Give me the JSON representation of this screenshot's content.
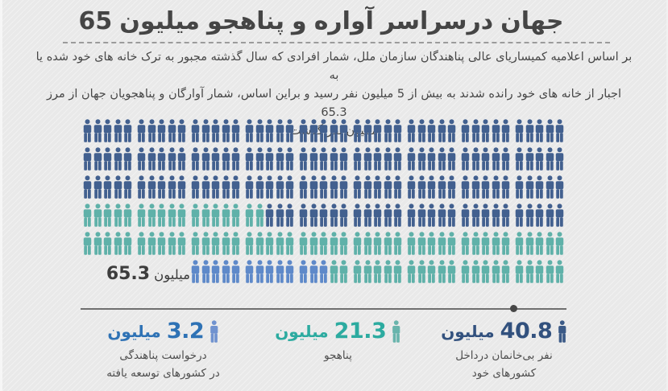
{
  "title": "65 میلیون پناهجو و آواره درسراسر جهان",
  "intro_lines": [
    "بر اساس اعلامیه کمیساریای عالی پناهندگان سازمان ملل، شمار افرادی که سال گذشته مجبور به ترک خانه های خود شده یا به",
    "اجبار از خانه های خود رانده شدند به بیش از 5 میلیون  نفر رسید و براین اساس، شمار آوارگان و پناهجویان جهان از مرز 65.3",
    "میلیون نفر گذشت"
  ],
  "pictogram_label": {
    "value": "65.3",
    "unit": "میلیون"
  },
  "chart_data": {
    "type": "pictogram",
    "title": "65 میلیون پناهجو و آواره درسراسر جهان",
    "person_unit_million": 0.25,
    "icons_per_group": 5,
    "groups_per_row": 9,
    "total": {
      "value_million": 65.3,
      "label": "65.3 میلیون"
    },
    "colors": {
      "navy": "#42608f",
      "teal": "#5fb1a9",
      "blue": "#5e89c9"
    },
    "rows": [
      {
        "indent_groups": 0,
        "segments": [
          {
            "color": "navy",
            "count": 45
          }
        ]
      },
      {
        "indent_groups": 0,
        "segments": [
          {
            "color": "navy",
            "count": 45
          }
        ]
      },
      {
        "indent_groups": 0,
        "segments": [
          {
            "color": "navy",
            "count": 45
          }
        ]
      },
      {
        "indent_groups": 0,
        "segments": [
          {
            "color": "teal",
            "count": 17
          },
          {
            "color": "navy",
            "count": 28
          }
        ]
      },
      {
        "indent_groups": 0,
        "segments": [
          {
            "color": "teal",
            "count": 45
          }
        ]
      },
      {
        "indent_groups": 2,
        "segments": [
          {
            "color": "blue",
            "count": 13
          },
          {
            "color": "teal",
            "count": 22
          }
        ]
      }
    ],
    "series": [
      {
        "name": "نفر بی‌خانمان درداخل کشورهای خود",
        "value_million": 40.8,
        "color_key": "navy"
      },
      {
        "name": "پناهجو",
        "value_million": 21.3,
        "color_key": "teal"
      },
      {
        "name": "درخواست پناهندگی در کشورهای توسعه یافته",
        "value_million": 3.2,
        "color_key": "blue"
      }
    ]
  },
  "stats": [
    {
      "value": "40.8",
      "unit": "میلیون",
      "label_lines": [
        "نفر بی‌خانمان  درداخل",
        "کشورهای خود"
      ],
      "text_color": "#32517e",
      "icon_color": "#3b5a87"
    },
    {
      "value": "21.3",
      "unit": "میلیون",
      "label_lines": [
        "پناهجو",
        ""
      ],
      "text_color": "#2caba0",
      "icon_color": "#68b4ac"
    },
    {
      "value": "3.2",
      "unit": "میلیون",
      "label_lines": [
        "درخواست پناهندگی",
        "در کشورهای توسعه یافته"
      ],
      "text_color": "#2e72b5",
      "icon_color": "#7092cf"
    }
  ]
}
